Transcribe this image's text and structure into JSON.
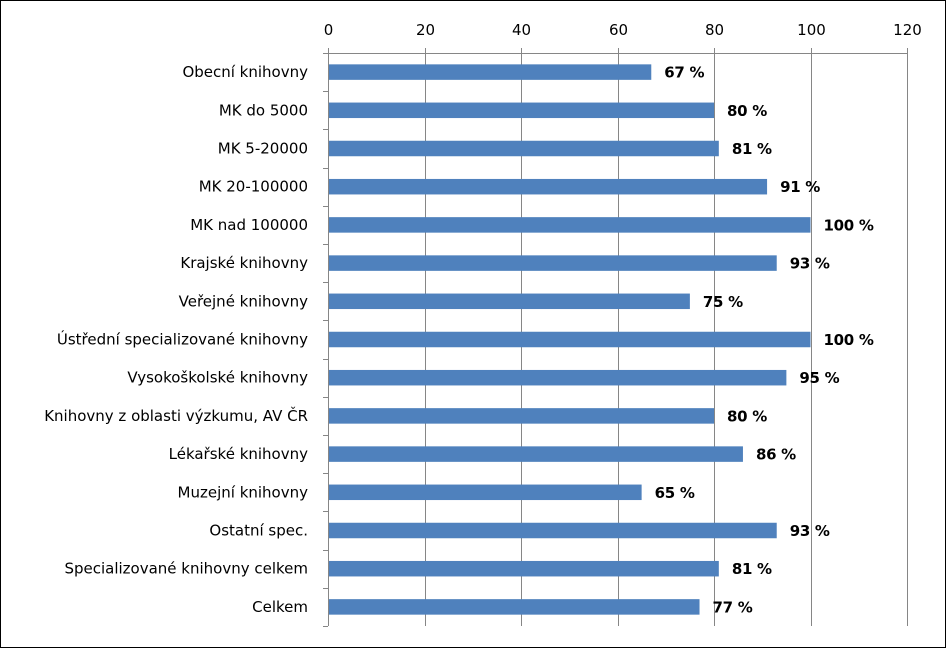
{
  "chart_data": {
    "type": "bar",
    "orientation": "horizontal",
    "categories": [
      "Obecní knihovny",
      "MK do 5000",
      "MK 5-20000",
      "MK 20-100000",
      "MK nad 100000",
      "Krajské knihovny",
      "Veřejné knihovny",
      "Ústřední specializované knihovny",
      "Vysokoškolské knihovny",
      "Knihovny z oblasti výzkumu, AV ČR",
      "Lékařské knihovny",
      "Muzejní knihovny",
      "Ostatní spec.",
      "Specializované knihovny celkem",
      "Celkem"
    ],
    "values": [
      67,
      80,
      81,
      91,
      100,
      93,
      75,
      100,
      95,
      80,
      86,
      65,
      93,
      81,
      77
    ],
    "value_labels": [
      "67 %",
      "80 %",
      "81 %",
      "91 %",
      "100 %",
      "93 %",
      "75 %",
      "100 %",
      "95 %",
      "80 %",
      "86 %",
      "65 %",
      "93 %",
      "81 %",
      "77 %"
    ],
    "xlim": [
      0,
      120
    ],
    "xticks": [
      0,
      20,
      40,
      60,
      80,
      100,
      120
    ],
    "x_axis_position": "top",
    "grid": "vertical",
    "legend": "none",
    "bar_color": "#4f81bd",
    "grid_color": "#868686"
  }
}
